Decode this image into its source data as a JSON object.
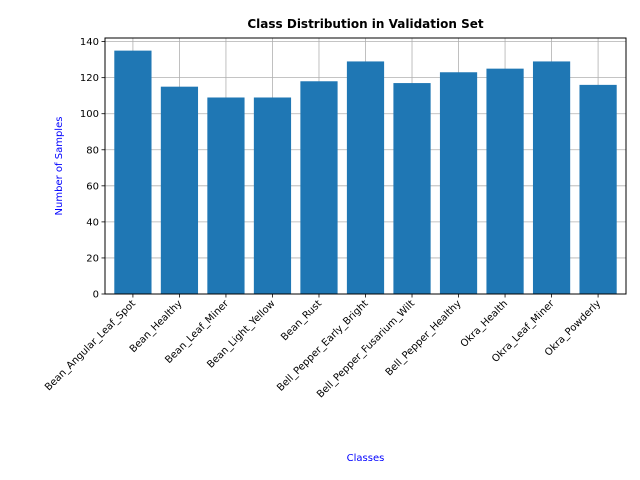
{
  "chart_data": {
    "type": "bar",
    "title": "Class Distribution in Validation Set",
    "xlabel": "Classes",
    "ylabel": "Number of Samples",
    "categories": [
      "Bean_Angular_Leaf_Spot",
      "Bean_Healthy",
      "Bean_Leaf_Miner",
      "Bean_Light_Yellow",
      "Bean_Rust",
      "Bell_Pepper_Early_Bright",
      "Bell_Pepper_Fusarium_Wilt",
      "Bell_Pepper_Healthy",
      "Okra_Health",
      "Okra_Leaf_Miner",
      "Okra_Powderly"
    ],
    "values": [
      135,
      115,
      109,
      109,
      118,
      129,
      117,
      123,
      125,
      129,
      116
    ],
    "ylim": [
      0,
      142
    ],
    "yticks": [
      0,
      20,
      40,
      60,
      80,
      100,
      120,
      140
    ],
    "grid": true,
    "colors": {
      "bar": "#1f77b4",
      "grid": "#b0b0b0",
      "axis_label": "#0000ff",
      "text": "#000000"
    }
  }
}
